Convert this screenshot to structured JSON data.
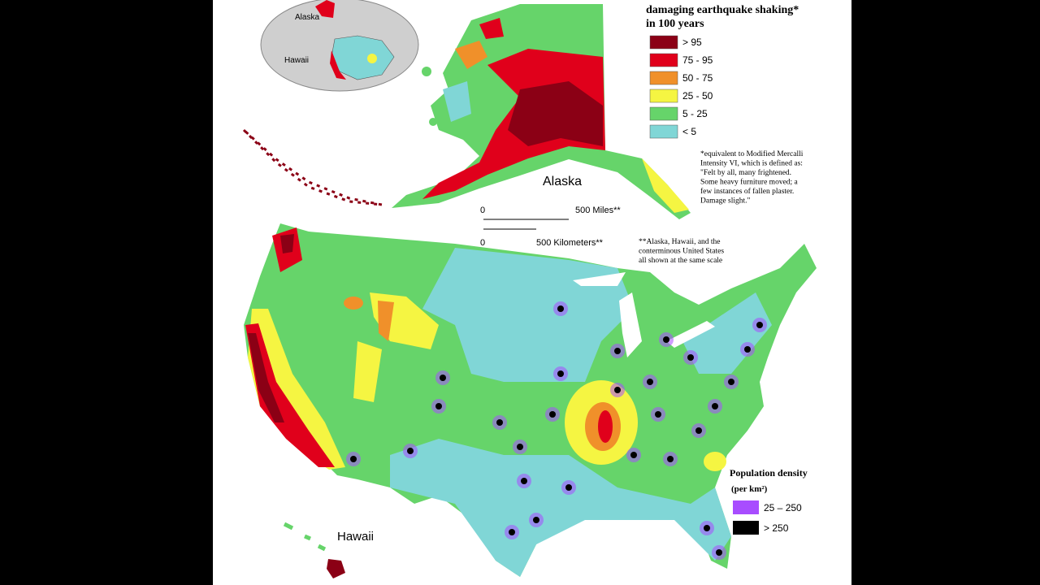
{
  "header": {
    "title_lines": [
      "damaging earthquake shaking*",
      "in 100 years"
    ]
  },
  "legend": {
    "items": [
      {
        "label": "> 95",
        "color": "#8b0015"
      },
      {
        "label": "75 - 95",
        "color": "#e0001b"
      },
      {
        "label": "50 - 75",
        "color": "#f0902a"
      },
      {
        "label": "25 - 50",
        "color": "#f5f542"
      },
      {
        "label": "5 - 25",
        "color": "#66d46a"
      },
      {
        "label": "< 5",
        "color": "#80d6d6"
      }
    ]
  },
  "footnotes": {
    "mercalli": [
      "*equivalent to Modified Mercalli",
      "Intensity VI, which is defined as:",
      "\"Felt by all, many frightened.",
      "Some heavy furniture moved; a",
      "few instances of fallen plaster.",
      "Damage slight.\""
    ],
    "scale": [
      "**Alaska, Hawaii, and the",
      "conterminous United States",
      "all shown at the same scale"
    ]
  },
  "labels": {
    "alaska": "Alaska",
    "hawaii": "Hawaii",
    "inset_alaska": "Alaska",
    "inset_hawaii": "Hawaii"
  },
  "scale_bar": {
    "miles_zero": "0",
    "miles": "500 Miles**",
    "km_zero": "0",
    "km": "500 Kilometers**"
  },
  "population_legend": {
    "title": "Population density",
    "unit": "(per km²)",
    "items": [
      {
        "label": "25 – 250",
        "color": "#a84dff"
      },
      {
        "label": "> 250",
        "color": "#000000"
      }
    ]
  }
}
